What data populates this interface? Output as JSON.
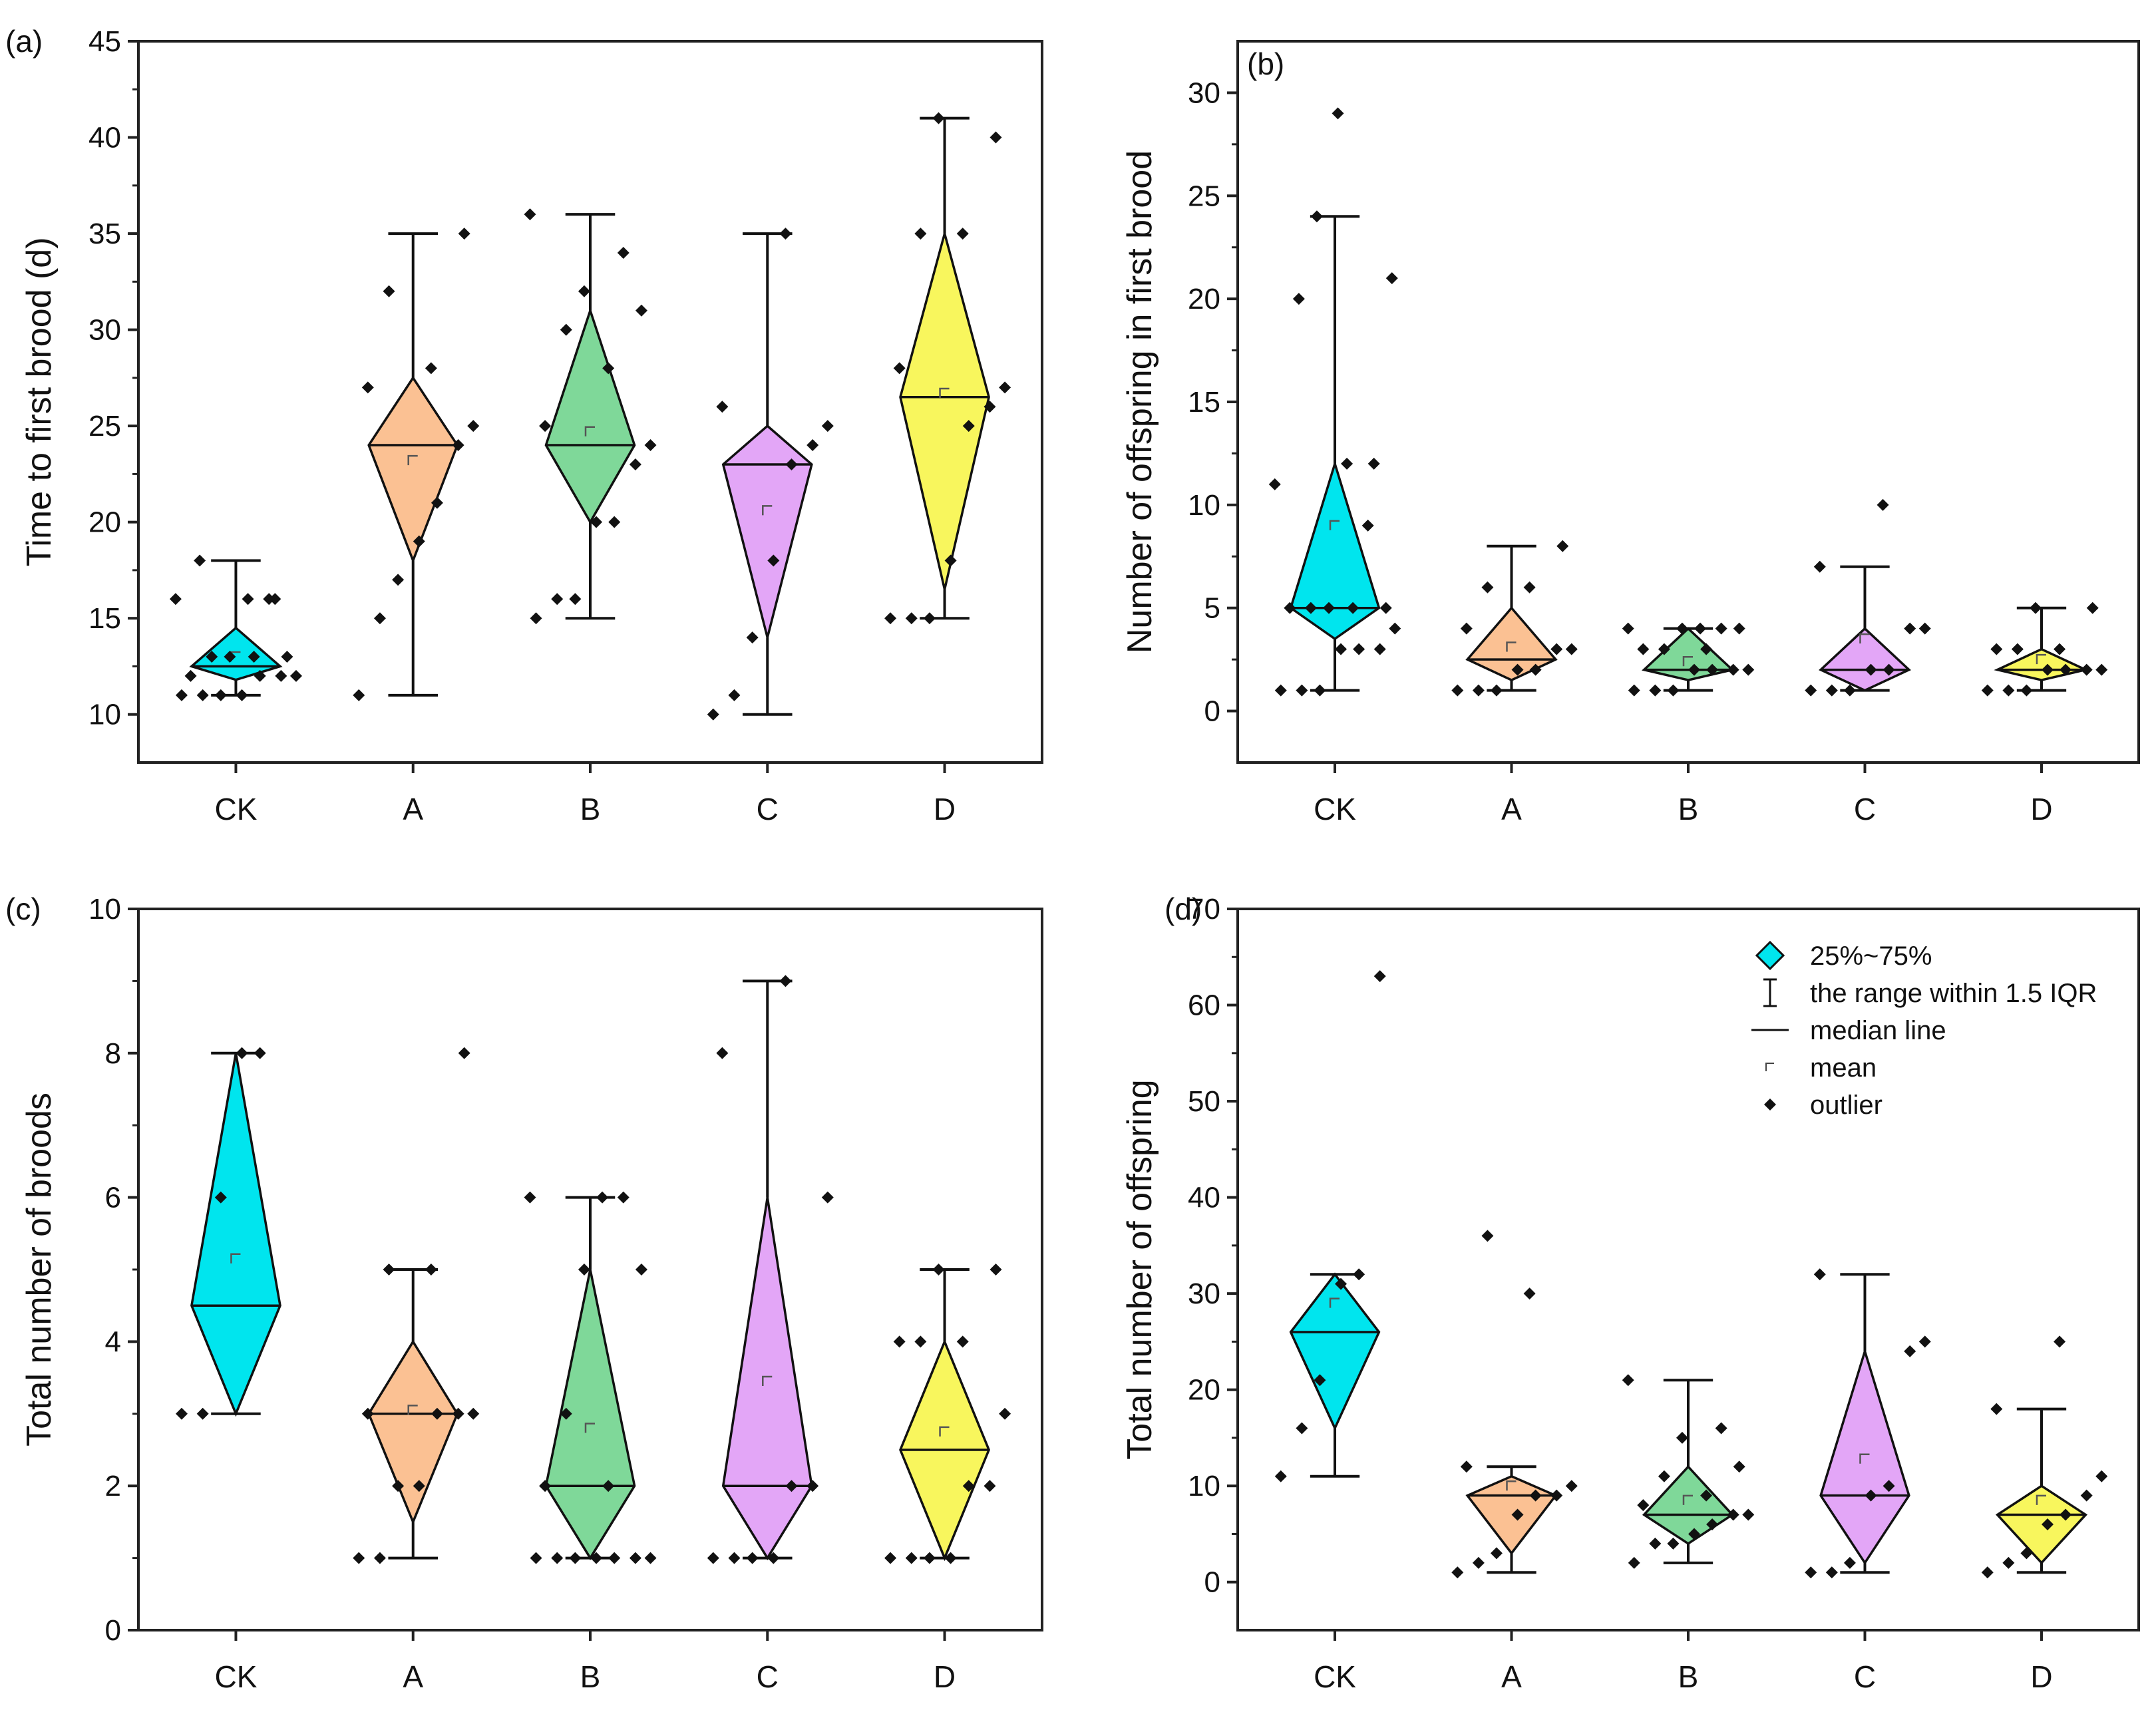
{
  "chart_data": [
    {
      "type": "diamond-box",
      "panel_label": "(a)",
      "ylabel": "Time to first brood (d)",
      "ylim": [
        7.5,
        45
      ],
      "yticks": [
        10,
        15,
        20,
        25,
        30,
        35,
        40,
        45
      ],
      "categories": [
        "CK",
        "A",
        "B",
        "C",
        "D"
      ],
      "colors": [
        "#00e5ee",
        "#fbc193",
        "#7fd899",
        "#e3a6f7",
        "#f8f65d"
      ],
      "boxes": [
        {
          "q1": 11.8,
          "median": 12.5,
          "q3": 14.5,
          "whisker_low": 11,
          "whisker_high": 18,
          "mean": 13.0
        },
        {
          "q1": 18,
          "median": 24,
          "q3": 27.5,
          "whisker_low": 11,
          "whisker_high": 35,
          "mean": 23.2
        },
        {
          "q1": 20,
          "median": 24,
          "q3": 31,
          "whisker_low": 15,
          "whisker_high": 36,
          "mean": 24.7
        },
        {
          "q1": 14,
          "median": 23,
          "q3": 25,
          "whisker_low": 10,
          "whisker_high": 35,
          "mean": 20.6
        },
        {
          "q1": 16.5,
          "median": 26.5,
          "q3": 35,
          "whisker_low": 15,
          "whisker_high": 41,
          "mean": 26.7
        }
      ],
      "points": [
        [
          11,
          11,
          11,
          11,
          12,
          12,
          12,
          12,
          13,
          13,
          13,
          13,
          16,
          16,
          16,
          16,
          18
        ],
        [
          11,
          15,
          17,
          19,
          21,
          24,
          25,
          27,
          28,
          32,
          35
        ],
        [
          15,
          16,
          16,
          20,
          20,
          23,
          24,
          25,
          28,
          30,
          31,
          32,
          34,
          36
        ],
        [
          10,
          11,
          14,
          18,
          23,
          24,
          25,
          26,
          35
        ],
        [
          15,
          15,
          15,
          18,
          25,
          26,
          27,
          28,
          35,
          35,
          40,
          41
        ]
      ]
    },
    {
      "type": "diamond-box",
      "panel_label": "(b)",
      "ylabel": "Number of offspring in first brood",
      "ylim": [
        -2.5,
        32.5
      ],
      "yticks": [
        0,
        5,
        10,
        15,
        20,
        25,
        30
      ],
      "categories": [
        "CK",
        "A",
        "B",
        "C",
        "D"
      ],
      "colors": [
        "#00e5ee",
        "#fbc193",
        "#7fd899",
        "#e3a6f7",
        "#f8f65d"
      ],
      "boxes": [
        {
          "q1": 3.5,
          "median": 5,
          "q3": 12,
          "whisker_low": 1,
          "whisker_high": 24,
          "mean": 9
        },
        {
          "q1": 1.5,
          "median": 2.5,
          "q3": 5,
          "whisker_low": 1,
          "whisker_high": 8,
          "mean": 3.1
        },
        {
          "q1": 1.5,
          "median": 2,
          "q3": 4,
          "whisker_low": 1,
          "whisker_high": 4,
          "mean": 2.4
        },
        {
          "q1": 1,
          "median": 2,
          "q3": 4,
          "whisker_low": 1,
          "whisker_high": 7,
          "mean": 3.5
        },
        {
          "q1": 1.5,
          "median": 2,
          "q3": 3,
          "whisker_low": 1,
          "whisker_high": 5,
          "mean": 2.5
        }
      ],
      "points": [
        [
          1,
          1,
          1,
          3,
          3,
          3,
          4,
          5,
          5,
          5,
          5,
          5,
          9,
          11,
          12,
          12,
          20,
          21,
          24,
          29
        ],
        [
          1,
          1,
          1,
          2,
          2,
          3,
          3,
          4,
          6,
          6,
          8
        ],
        [
          1,
          1,
          1,
          2,
          2,
          2,
          2,
          3,
          3,
          3,
          4,
          4,
          4,
          4,
          4
        ],
        [
          1,
          1,
          1,
          2,
          2,
          4,
          4,
          7,
          10
        ],
        [
          1,
          1,
          1,
          2,
          2,
          2,
          2,
          3,
          3,
          3,
          5,
          5
        ]
      ]
    },
    {
      "type": "diamond-box",
      "panel_label": "(c)",
      "ylabel": "Total number of broods",
      "ylim": [
        0,
        10
      ],
      "yticks": [
        0,
        2,
        4,
        6,
        8,
        10
      ],
      "categories": [
        "CK",
        "A",
        "B",
        "C",
        "D"
      ],
      "colors": [
        "#00e5ee",
        "#fbc193",
        "#7fd899",
        "#e3a6f7",
        "#f8f65d"
      ],
      "boxes": [
        {
          "q1": 3,
          "median": 4.5,
          "q3": 8,
          "whisker_low": 3,
          "whisker_high": 8,
          "mean": 5.15
        },
        {
          "q1": 1.5,
          "median": 3,
          "q3": 4,
          "whisker_low": 1,
          "whisker_high": 5,
          "mean": 3.05
        },
        {
          "q1": 1,
          "median": 2,
          "q3": 5,
          "whisker_low": 1,
          "whisker_high": 6,
          "mean": 2.8
        },
        {
          "q1": 1,
          "median": 2,
          "q3": 6,
          "whisker_low": 1,
          "whisker_high": 9,
          "mean": 3.45
        },
        {
          "q1": 1,
          "median": 2.5,
          "q3": 4,
          "whisker_low": 1,
          "whisker_high": 5,
          "mean": 2.75
        }
      ],
      "points": [
        [
          3,
          3,
          6,
          8,
          8
        ],
        [
          1,
          1,
          2,
          2,
          3,
          3,
          3,
          3,
          5,
          5,
          8
        ],
        [
          1,
          1,
          1,
          1,
          1,
          1,
          1,
          2,
          2,
          3,
          5,
          5,
          6,
          6,
          6
        ],
        [
          1,
          1,
          1,
          1,
          2,
          2,
          6,
          8,
          9
        ],
        [
          1,
          1,
          1,
          1,
          2,
          2,
          3,
          4,
          4,
          4,
          5,
          5
        ]
      ]
    },
    {
      "type": "diamond-box",
      "panel_label": "(d)",
      "ylabel": "Total number of offspring",
      "ylim": [
        -5,
        70
      ],
      "yticks": [
        0,
        10,
        20,
        30,
        40,
        50,
        60,
        70
      ],
      "categories": [
        "CK",
        "A",
        "B",
        "C",
        "D"
      ],
      "colors": [
        "#00e5ee",
        "#fbc193",
        "#7fd899",
        "#e3a6f7",
        "#f8f65d"
      ],
      "boxes": [
        {
          "q1": 16,
          "median": 26,
          "q3": 32,
          "whisker_low": 11,
          "whisker_high": 32,
          "mean": 29
        },
        {
          "q1": 3,
          "median": 9,
          "q3": 11,
          "whisker_low": 1,
          "whisker_high": 12,
          "mean": 10
        },
        {
          "q1": 4,
          "median": 7,
          "q3": 12,
          "whisker_low": 2,
          "whisker_high": 21,
          "mean": 8.5
        },
        {
          "q1": 2,
          "median": 9,
          "q3": 24,
          "whisker_low": 1,
          "whisker_high": 32,
          "mean": 12.8
        },
        {
          "q1": 2,
          "median": 7,
          "q3": 10,
          "whisker_low": 1,
          "whisker_high": 18,
          "mean": 8.5
        }
      ],
      "points": [
        [
          11,
          16,
          21,
          31,
          32,
          63
        ],
        [
          1,
          2,
          3,
          7,
          9,
          9,
          10,
          12,
          30,
          36
        ],
        [
          2,
          4,
          4,
          5,
          6,
          7,
          7,
          8,
          9,
          11,
          12,
          15,
          16,
          21
        ],
        [
          1,
          1,
          2,
          9,
          10,
          24,
          25,
          32
        ],
        [
          1,
          2,
          3,
          6,
          7,
          9,
          11,
          18,
          25
        ]
      ],
      "legend": {
        "placement": "top-right",
        "entries": [
          "25%~75%",
          "the range within 1.5 IQR",
          "median line",
          "mean",
          "outlier"
        ]
      }
    }
  ]
}
